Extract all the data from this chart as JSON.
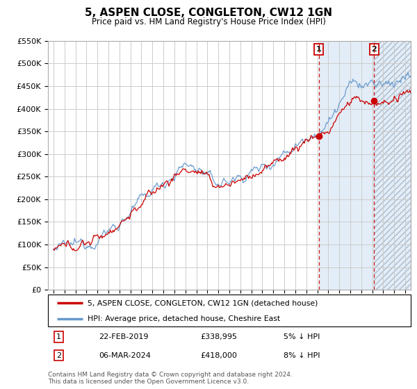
{
  "title": "5, ASPEN CLOSE, CONGLETON, CW12 1GN",
  "subtitle": "Price paid vs. HM Land Registry's House Price Index (HPI)",
  "legend_line1": "5, ASPEN CLOSE, CONGLETON, CW12 1GN (detached house)",
  "legend_line2": "HPI: Average price, detached house, Cheshire East",
  "transaction1_date": "22-FEB-2019",
  "transaction1_price": "£338,995",
  "transaction1_hpi": "5% ↓ HPI",
  "transaction1_price_val": 338995,
  "transaction1_year": 2019.14,
  "transaction2_date": "06-MAR-2024",
  "transaction2_price": "£418,000",
  "transaction2_hpi": "8% ↓ HPI",
  "transaction2_price_val": 418000,
  "transaction2_year": 2024.18,
  "copyright": "Contains HM Land Registry data © Crown copyright and database right 2024.\nThis data is licensed under the Open Government Licence v3.0.",
  "hpi_line_color": "#6699cc",
  "price_line_color": "#cc0000",
  "hatch_color": "#c8ddf0",
  "background_color": "#ffffff",
  "grid_color": "#cccccc",
  "ylim_max": 550000,
  "ytick_step": 50000,
  "year_start": 1995,
  "year_end": 2027,
  "seed": 12345
}
